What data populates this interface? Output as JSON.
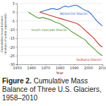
{
  "chart_data": {
    "type": "line",
    "caption_label": "Figure 2.",
    "title": "Cumulative Mass Balance of Three U.S. Glaciers, 1958–2010",
    "x_label": "Year",
    "y_label": [
      "Cumulative mass balance",
      "(meters of water equivalent)"
    ],
    "x": [
      1958,
      1960,
      1962,
      1964,
      1966,
      1968,
      1970,
      1972,
      1974,
      1976,
      1978,
      1980,
      1982,
      1984,
      1986,
      1988,
      1990,
      1992,
      1994,
      1996,
      1998,
      2000,
      2002,
      2004,
      2006,
      2008,
      2010
    ],
    "series": [
      {
        "name": "Wolverine Glacier",
        "color": "#3b6fc6",
        "values": [
          null,
          null,
          null,
          null,
          0,
          0.5,
          1,
          1.5,
          2,
          2,
          1.5,
          2,
          3,
          3.5,
          3,
          3.5,
          4,
          4,
          3,
          2,
          1,
          0.5,
          -1,
          -3,
          -5,
          -6.5,
          -8
        ]
      },
      {
        "name": "Gulkana Glacier",
        "color": "#c4372c",
        "values": [
          null,
          null,
          null,
          null,
          0,
          -0.5,
          -1,
          -1.5,
          -2,
          -2.5,
          -3,
          -3.5,
          -4,
          -4.5,
          -5,
          -5.5,
          -6,
          -6.5,
          -7.5,
          -9,
          -10.5,
          -12,
          -13.5,
          -15,
          -17,
          -19,
          -20
        ]
      },
      {
        "name": "South Cascade Glacier",
        "color": "#5a9a3a",
        "values": [
          0,
          -1,
          -2,
          -3,
          -3.5,
          -3,
          -3.5,
          -4,
          -4.5,
          -5.5,
          -6,
          -6.5,
          -7.5,
          -8.5,
          -9.5,
          -11,
          -12,
          -13,
          -14,
          -15,
          -16,
          -18,
          -19.5,
          -21,
          -22.5,
          -24,
          -25
        ]
      }
    ],
    "xlim": [
      1950,
      2010
    ],
    "xticks": [
      1950,
      1960,
      1970,
      1980,
      1990,
      2000,
      2010
    ],
    "ylim": [
      -30,
      5
    ],
    "yticks": [
      -30,
      -25,
      -20,
      -15,
      -10,
      -5,
      0,
      5
    ],
    "grid": true
  }
}
